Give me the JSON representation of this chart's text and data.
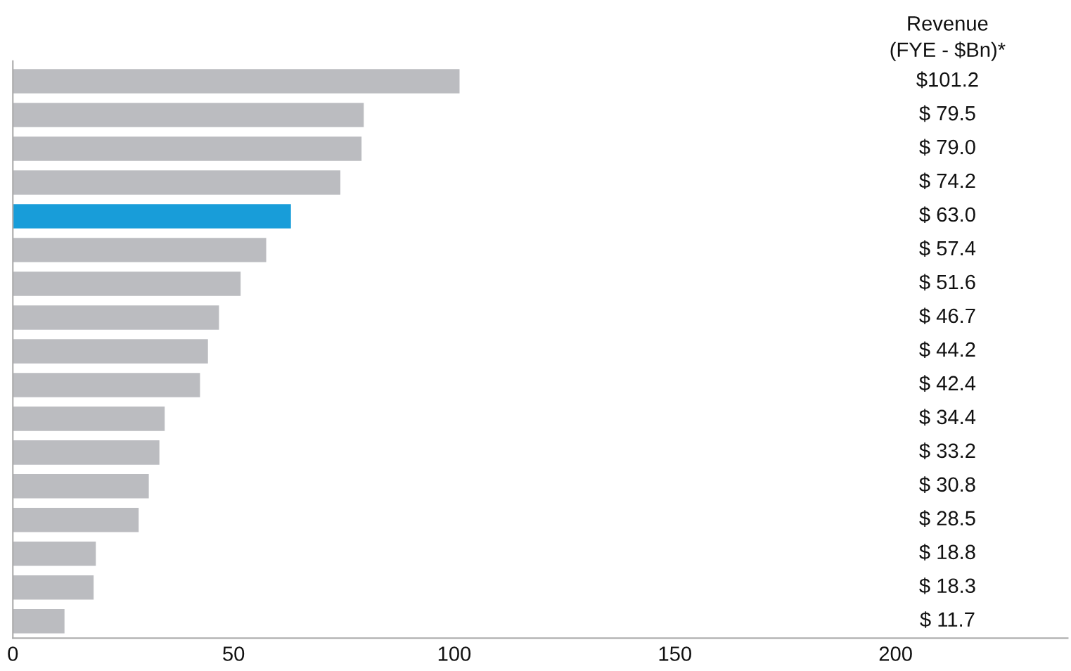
{
  "chart_data": {
    "type": "bar",
    "orientation": "horizontal",
    "categories": [
      null,
      null,
      null,
      null,
      null,
      null,
      null,
      null,
      null,
      null,
      null,
      null,
      null,
      null,
      null,
      null,
      null
    ],
    "values": [
      101.2,
      79.5,
      79.0,
      74.2,
      63.0,
      57.4,
      51.6,
      46.7,
      44.2,
      42.4,
      34.4,
      33.2,
      30.8,
      28.5,
      18.8,
      18.3,
      11.7
    ],
    "colors": [
      "#bbbcc0",
      "#bbbcc0",
      "#bbbcc0",
      "#bbbcc0",
      "#189dd9",
      "#bbbcc0",
      "#bbbcc0",
      "#bbbcc0",
      "#bbbcc0",
      "#bbbcc0",
      "#bbbcc0",
      "#bbbcc0",
      "#bbbcc0",
      "#bbbcc0",
      "#bbbcc0",
      "#bbbcc0",
      "#bbbcc0"
    ],
    "value_labels": [
      "$101.2",
      "$ 79.5",
      "$ 79.0",
      "$ 74.2",
      "$ 63.0",
      "$ 57.4",
      "$ 51.6",
      "$ 46.7",
      "$ 44.2",
      "$ 42.4",
      "$ 34.4",
      "$ 33.2",
      "$ 30.8",
      "$ 28.5",
      "$ 18.8",
      "$ 18.3",
      "$ 11.7"
    ],
    "annotations": [
      "Revenue\n(FYE - $Bn)*"
    ],
    "xlim": [
      0,
      239
    ],
    "xticks": [
      0,
      50,
      100,
      150,
      200
    ],
    "grid": false
  }
}
